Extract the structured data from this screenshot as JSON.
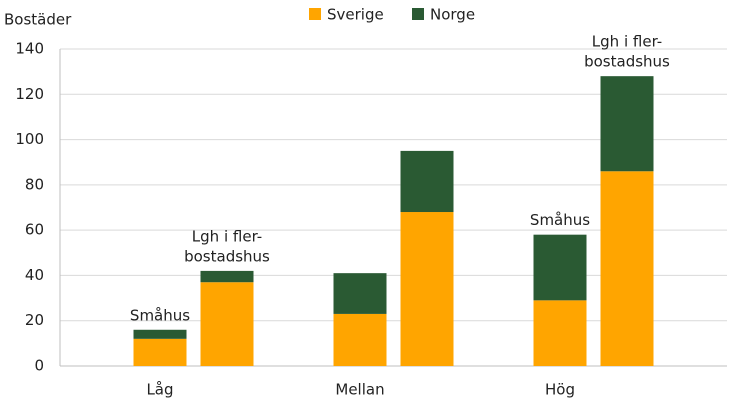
{
  "chart_data": {
    "type": "stacked_grouped_bar",
    "y_label": "Bostäder",
    "categories": [
      "Låg",
      "Mellan",
      "Hög"
    ],
    "series": [
      {
        "name": "Sverige",
        "color": "#ffa500",
        "values": [
          [
            12,
            37
          ],
          [
            23,
            68
          ],
          [
            29,
            86
          ]
        ]
      },
      {
        "name": "Norge",
        "color": "#2a5a33",
        "values": [
          [
            4,
            5
          ],
          [
            18,
            27
          ],
          [
            29,
            42
          ]
        ]
      }
    ],
    "annotations": [
      {
        "lines": [
          "Småhus"
        ]
      },
      {
        "lines": [
          "Lgh i fler-",
          "bostadshus"
        ]
      },
      {
        "lines": [
          "Småhus"
        ]
      },
      {
        "lines": [
          "Lgh i fler-",
          "bostadshus"
        ]
      }
    ],
    "ylim": [
      0,
      140
    ],
    "yticks": [
      0,
      20,
      40,
      60,
      80,
      100,
      120,
      140
    ],
    "grid": true
  }
}
